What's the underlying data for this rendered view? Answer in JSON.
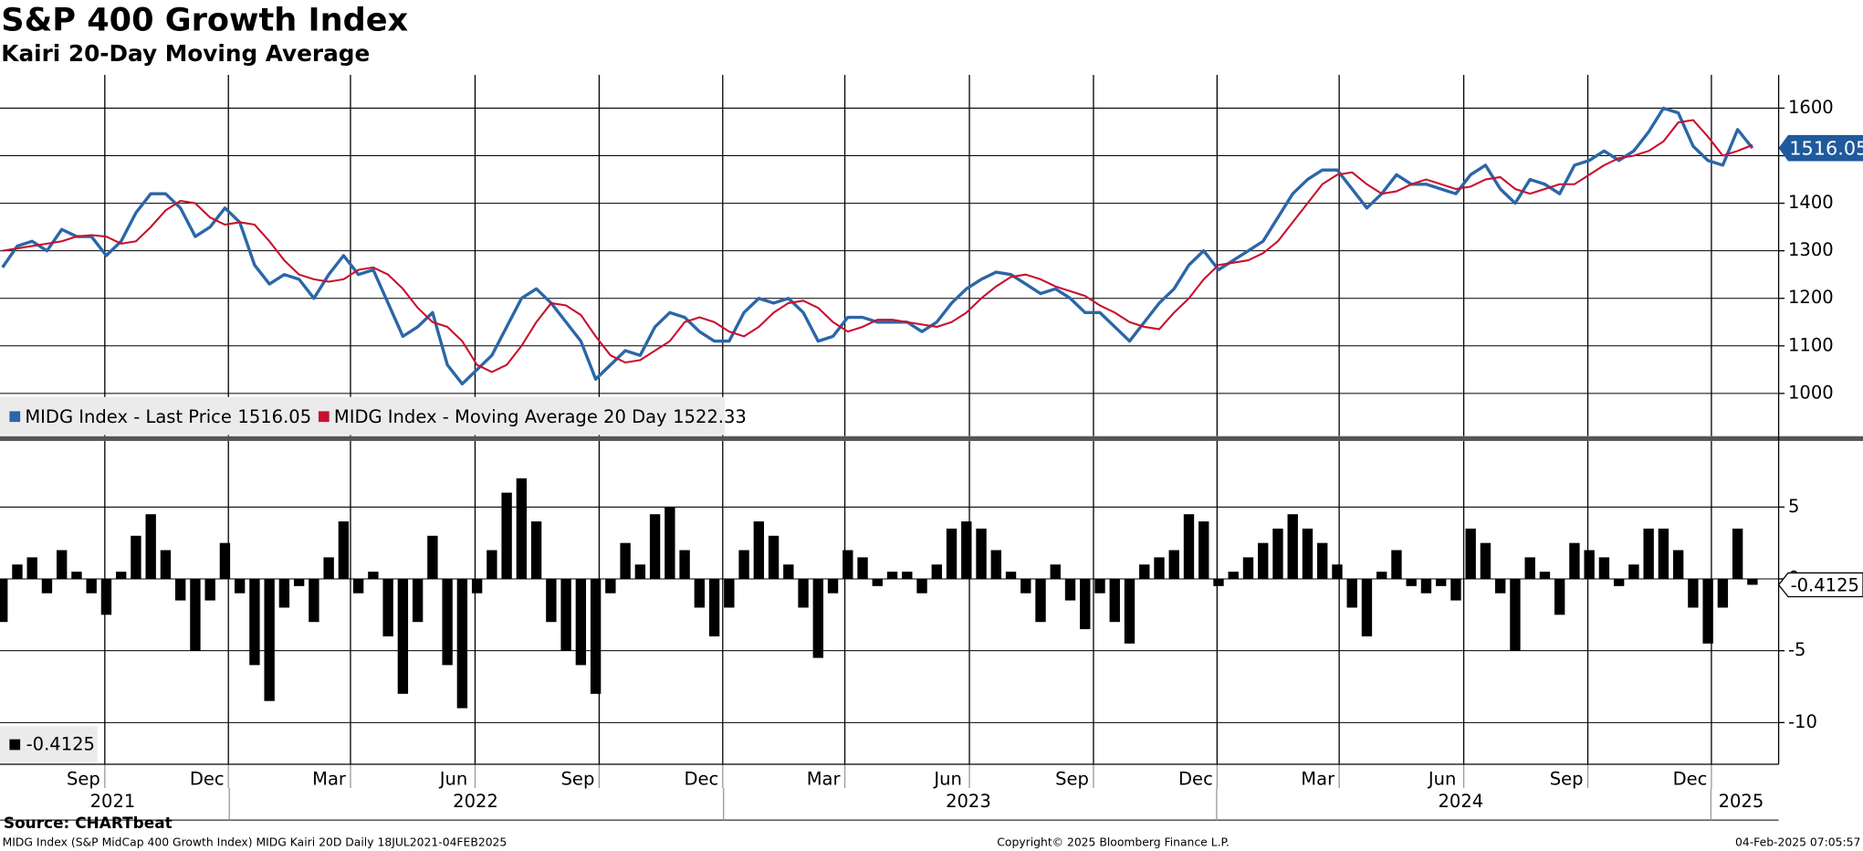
{
  "chart_data": [
    {
      "type": "line",
      "title": "S&P 400 Growth Index",
      "subtitle": "Kairi 20-Day Moving Average",
      "x": [
        2021.46,
        2021.49,
        2021.52,
        2021.55,
        2021.58,
        2021.61,
        2021.64,
        2021.67,
        2021.7,
        2021.73,
        2021.76,
        2021.79,
        2021.82,
        2021.85,
        2021.88,
        2021.91,
        2021.94,
        2021.97,
        2022,
        2022.03,
        2022.06,
        2022.09,
        2022.12,
        2022.15,
        2022.18,
        2022.21,
        2022.24,
        2022.27,
        2022.3,
        2022.33,
        2022.36,
        2022.39,
        2022.42,
        2022.45,
        2022.48,
        2022.51,
        2022.54,
        2022.57,
        2022.6,
        2022.63,
        2022.66,
        2022.69,
        2022.72,
        2022.75,
        2022.78,
        2022.81,
        2022.84,
        2022.87,
        2022.9,
        2022.93,
        2022.96,
        2022.99,
        2023.02,
        2023.05,
        2023.08,
        2023.11,
        2023.14,
        2023.17,
        2023.2,
        2023.23,
        2023.26,
        2023.29,
        2023.32,
        2023.35,
        2023.38,
        2023.41,
        2023.44,
        2023.47,
        2023.5,
        2023.53,
        2023.56,
        2023.59,
        2023.62,
        2023.65,
        2023.68,
        2023.71,
        2023.74,
        2023.77,
        2023.8,
        2023.83,
        2023.86,
        2023.89,
        2023.92,
        2023.95,
        2023.98,
        2024.01,
        2024.04,
        2024.07,
        2024.1,
        2024.13,
        2024.16,
        2024.19,
        2024.22,
        2024.25,
        2024.28,
        2024.31,
        2024.34,
        2024.37,
        2024.4,
        2024.43,
        2024.46,
        2024.49,
        2024.52,
        2024.55,
        2024.58,
        2024.61,
        2024.64,
        2024.67,
        2024.7,
        2024.73,
        2024.76,
        2024.79,
        2024.82,
        2024.85,
        2024.88,
        2024.91,
        2024.94,
        2024.97,
        2025
      ],
      "series": [
        {
          "name": "MIDG Index - Last Price",
          "color": "#2b66a8",
          "values": [
            1265,
            1310,
            1320,
            1300,
            1345,
            1330,
            1330,
            1290,
            1320,
            1380,
            1420,
            1420,
            1390,
            1330,
            1350,
            1390,
            1360,
            1270,
            1230,
            1250,
            1240,
            1200,
            1250,
            1290,
            1250,
            1260,
            1190,
            1120,
            1140,
            1170,
            1060,
            1020,
            1050,
            1080,
            1140,
            1200,
            1220,
            1190,
            1150,
            1110,
            1030,
            1060,
            1090,
            1080,
            1140,
            1170,
            1160,
            1130,
            1110,
            1110,
            1170,
            1200,
            1190,
            1200,
            1170,
            1110,
            1120,
            1160,
            1160,
            1150,
            1150,
            1150,
            1130,
            1150,
            1190,
            1220,
            1240,
            1255,
            1250,
            1230,
            1210,
            1220,
            1200,
            1170,
            1170,
            1140,
            1110,
            1150,
            1190,
            1220,
            1270,
            1300,
            1260,
            1280,
            1300,
            1320,
            1370,
            1420,
            1450,
            1470,
            1470,
            1430,
            1390,
            1420,
            1460,
            1440,
            1440,
            1430,
            1420,
            1460,
            1480,
            1430,
            1400,
            1450,
            1440,
            1420,
            1480,
            1490,
            1510,
            1490,
            1510,
            1550,
            1600,
            1590,
            1520,
            1490,
            1480,
            1555,
            1516.05
          ]
        },
        {
          "name": "MIDG Index - Moving Average 20 Day",
          "color": "#c8102e",
          "values": [
            1300,
            1305,
            1310,
            1315,
            1320,
            1330,
            1333,
            1330,
            1315,
            1320,
            1350,
            1385,
            1405,
            1400,
            1370,
            1355,
            1360,
            1355,
            1320,
            1280,
            1250,
            1240,
            1235,
            1240,
            1260,
            1265,
            1250,
            1220,
            1180,
            1150,
            1140,
            1110,
            1060,
            1045,
            1060,
            1100,
            1150,
            1190,
            1185,
            1165,
            1120,
            1080,
            1065,
            1070,
            1090,
            1110,
            1150,
            1160,
            1150,
            1130,
            1120,
            1140,
            1170,
            1190,
            1195,
            1180,
            1150,
            1130,
            1140,
            1155,
            1155,
            1150,
            1145,
            1140,
            1150,
            1170,
            1200,
            1225,
            1245,
            1250,
            1240,
            1225,
            1215,
            1205,
            1185,
            1170,
            1150,
            1140,
            1135,
            1170,
            1200,
            1240,
            1270,
            1275,
            1280,
            1295,
            1320,
            1360,
            1400,
            1440,
            1460,
            1465,
            1440,
            1420,
            1425,
            1440,
            1450,
            1440,
            1430,
            1435,
            1450,
            1455,
            1430,
            1420,
            1430,
            1440,
            1440,
            1460,
            1480,
            1495,
            1500,
            1510,
            1530,
            1570,
            1575,
            1540,
            1500,
            1510,
            1522.33
          ]
        }
      ],
      "xlim": [
        2021.455,
        2025.053
      ],
      "xticks": [
        {
          "value": 2021.667,
          "label": "Sep"
        },
        {
          "value": 2021.917,
          "label": "Dec"
        },
        {
          "value": 2022.164,
          "label": "Mar"
        },
        {
          "value": 2022.416,
          "label": "Jun"
        },
        {
          "value": 2022.667,
          "label": "Sep"
        },
        {
          "value": 2022.917,
          "label": "Dec"
        },
        {
          "value": 2023.164,
          "label": "Mar"
        },
        {
          "value": 2023.416,
          "label": "Jun"
        },
        {
          "value": 2023.667,
          "label": "Sep"
        },
        {
          "value": 2023.917,
          "label": "Dec"
        },
        {
          "value": 2024.164,
          "label": "Mar"
        },
        {
          "value": 2024.416,
          "label": "Jun"
        },
        {
          "value": 2024.667,
          "label": "Sep"
        },
        {
          "value": 2024.917,
          "label": "Dec"
        }
      ],
      "year_ticks": [
        {
          "value": 2021.683,
          "label": "2021"
        },
        {
          "value": 2022.417,
          "label": "2022"
        },
        {
          "value": 2023.414,
          "label": "2023"
        },
        {
          "value": 2024.41,
          "label": "2024"
        },
        {
          "value": 2024.977,
          "label": "2025"
        }
      ],
      "ylim": [
        910,
        1670
      ],
      "yticks": [
        1000,
        1100,
        1200,
        1300,
        1400,
        1500,
        1600
      ],
      "grid": true,
      "legend": "lower left"
    },
    {
      "type": "bar",
      "series": [
        {
          "color": "#000000",
          "values": [
            -3,
            1,
            1.5,
            -1,
            2,
            0.5,
            -1,
            -2.5,
            0.5,
            3,
            4.5,
            2,
            -1.5,
            -5,
            -1.5,
            2.5,
            -1,
            -6,
            -8.5,
            -2,
            -0.5,
            -3,
            1.5,
            4,
            -1,
            0.5,
            -4,
            -8,
            -3,
            3,
            -6,
            -9,
            -1,
            2,
            6,
            7,
            4,
            -3,
            -5,
            -6,
            -8,
            -1,
            2.5,
            1,
            4.5,
            5,
            2,
            -2,
            -4,
            -2,
            2,
            4,
            3,
            1,
            -2,
            -5.5,
            -1,
            2,
            1.5,
            -0.5,
            0.5,
            0.5,
            -1,
            1,
            3.5,
            4,
            3.5,
            2,
            0.5,
            -1,
            -3,
            1,
            -1.5,
            -3.5,
            -1,
            -3,
            -4.5,
            1,
            1.5,
            2,
            4.5,
            4,
            -0.5,
            0.5,
            1.5,
            2.5,
            3.5,
            4.5,
            3.5,
            2.5,
            1,
            -2,
            -4,
            0.5,
            2,
            -0.5,
            -1,
            -0.5,
            -1.5,
            3.5,
            2.5,
            -1,
            -5,
            1.5,
            0.5,
            -2.5,
            2.5,
            2,
            1.5,
            -0.5,
            1,
            3.5,
            3.5,
            2,
            -2,
            -4.5,
            -2,
            3.5,
            -0.4125
          ]
        }
      ],
      "ylim": [
        -12.9,
        9.6
      ],
      "yticks": [
        -10,
        -5,
        0,
        5
      ],
      "grid": true,
      "legend": "lower left"
    }
  ],
  "footer": {
    "source": "Source: CHARTbeat",
    "description": "MIDG Index (S&P MidCap 400 Growth Index) MIDG Kairi 20D  Daily 18JUL2021-04FEB2025",
    "copyright": "Copyright© 2025 Bloomberg Finance L.P.",
    "timestamp": "04-Feb-2025 07:05:57"
  }
}
